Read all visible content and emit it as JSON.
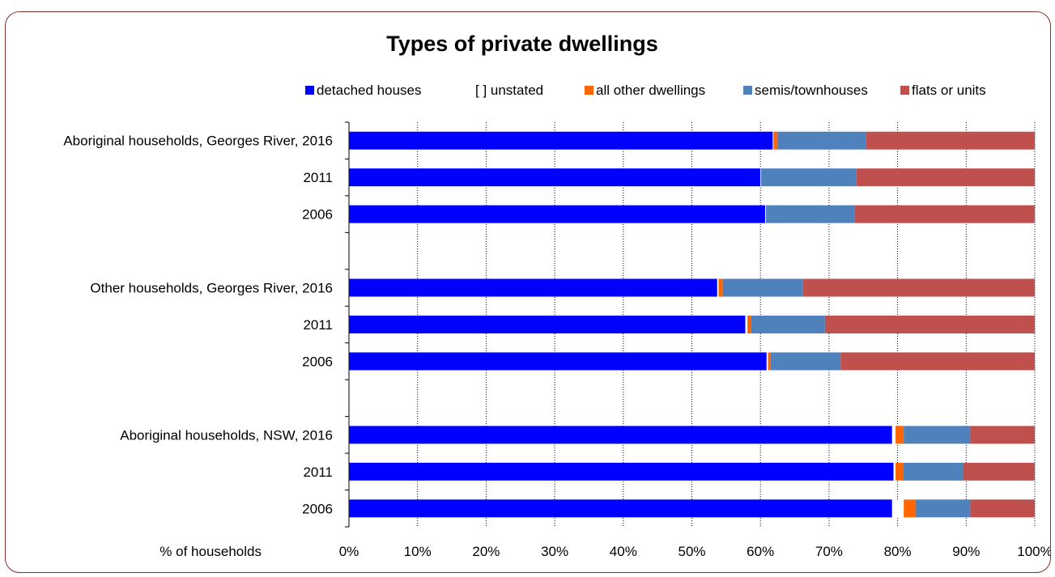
{
  "chart_data": {
    "type": "bar",
    "orientation": "horizontal",
    "stacked": true,
    "percent": true,
    "title": "Types of private dwellings",
    "xlabel": "% of households",
    "ylabel": "",
    "xlim": [
      0,
      100
    ],
    "x_ticks": [
      "0%",
      "10%",
      "20%",
      "30%",
      "40%",
      "50%",
      "60%",
      "70%",
      "80%",
      "90%",
      "100%"
    ],
    "grid": true,
    "legend_position": "top",
    "categories": [
      "Aboriginal households, Georges River, 2016",
      "2011",
      "2006",
      "",
      "Other households, Georges River, 2016",
      "2011",
      "2006",
      "",
      "Aboriginal households, NSW, 2016",
      "2011",
      "2006"
    ],
    "series": [
      {
        "name": "detached houses",
        "color": "#0000ff",
        "values": [
          61.8,
          60.0,
          60.7,
          null,
          53.7,
          57.8,
          60.9,
          null,
          79.2,
          79.4,
          79.2
        ]
      },
      {
        "name": "unstated",
        "color": "#ffffff",
        "values": [
          0.1,
          0.1,
          0.1,
          null,
          0.2,
          0.3,
          0.2,
          null,
          0.5,
          0.3,
          1.7
        ]
      },
      {
        "name": "all other dwellings",
        "color": "#ff6600",
        "values": [
          0.6,
          0.0,
          0.0,
          null,
          0.6,
          0.5,
          0.4,
          null,
          1.2,
          1.1,
          1.7
        ]
      },
      {
        "name": "semis/townhouses",
        "color": "#4f81bd",
        "values": [
          12.9,
          13.9,
          12.9,
          null,
          11.7,
          10.8,
          10.2,
          null,
          9.7,
          8.7,
          8.0
        ]
      },
      {
        "name": "flats or units",
        "color": "#c0504d",
        "values": [
          24.6,
          26.0,
          26.3,
          null,
          33.8,
          30.6,
          28.3,
          null,
          9.4,
          10.5,
          9.4
        ]
      }
    ],
    "legend": [
      {
        "label": "detached houses",
        "marker": "square",
        "color": "#0000ff"
      },
      {
        "label": "[   ] unstated",
        "marker": "none",
        "color": "#ffffff"
      },
      {
        "label": "all other dwellings",
        "marker": "square",
        "color": "#ff6600"
      },
      {
        "label": "semis/townhouses",
        "marker": "square",
        "color": "#4f81bd"
      },
      {
        "label": "flats or units",
        "marker": "square",
        "color": "#c0504d"
      }
    ]
  }
}
